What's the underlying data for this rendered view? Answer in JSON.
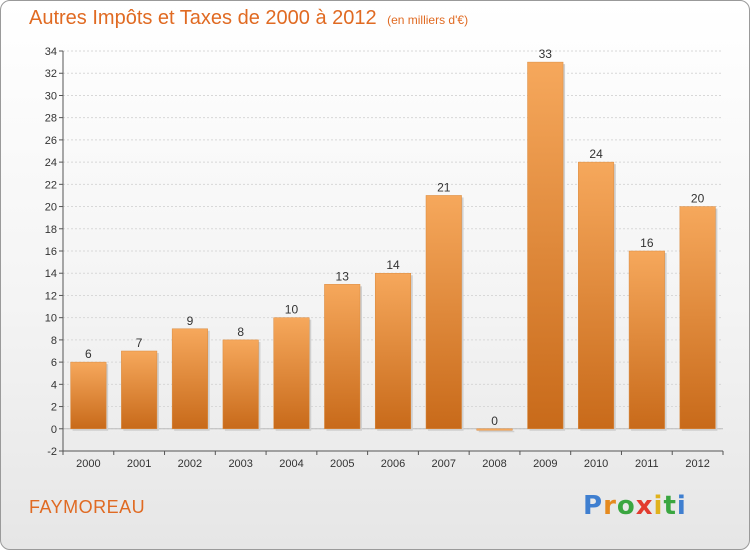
{
  "title": "Autres Impôts et Taxes de 2000 à 2012",
  "subtitle": "(en milliers d'€)",
  "commune": "FAYMOREAU",
  "logo": {
    "letters": [
      "P",
      "r",
      "o",
      "x",
      "i",
      "t",
      "i"
    ],
    "colors": [
      "#3f7fd0",
      "#e58a1f",
      "#3aa640",
      "#e23b2f",
      "#e0b21c",
      "#3aa640",
      "#3f7fd0"
    ]
  },
  "colors": {
    "title": "#e06a22",
    "bar_light": "#f6a85c",
    "bar_dark": "#c86a1a",
    "axis": "#555555",
    "grid": "#d8d8d8"
  },
  "chart_data": {
    "type": "bar",
    "title": "Autres Impôts et Taxes de 2000 à 2012",
    "subtitle": "(en milliers d'€)",
    "categories": [
      "2000",
      "2001",
      "2002",
      "2003",
      "2004",
      "2005",
      "2006",
      "2007",
      "2008",
      "2009",
      "2010",
      "2011",
      "2012"
    ],
    "values": [
      6,
      7,
      9,
      8,
      10,
      13,
      14,
      21,
      0,
      33,
      24,
      16,
      20
    ],
    "data_labels": [
      "6",
      "7",
      "9",
      "8",
      "10",
      "13",
      "14",
      "21",
      "0",
      "33",
      "24",
      "16",
      "20"
    ],
    "ylim": [
      -2,
      34
    ],
    "yticks": [
      "-2",
      "0",
      "2",
      "4",
      "6",
      "8",
      "10",
      "12",
      "14",
      "16",
      "18",
      "20",
      "22",
      "24",
      "26",
      "28",
      "30",
      "32",
      "34"
    ],
    "grid": true,
    "legend": "none"
  }
}
